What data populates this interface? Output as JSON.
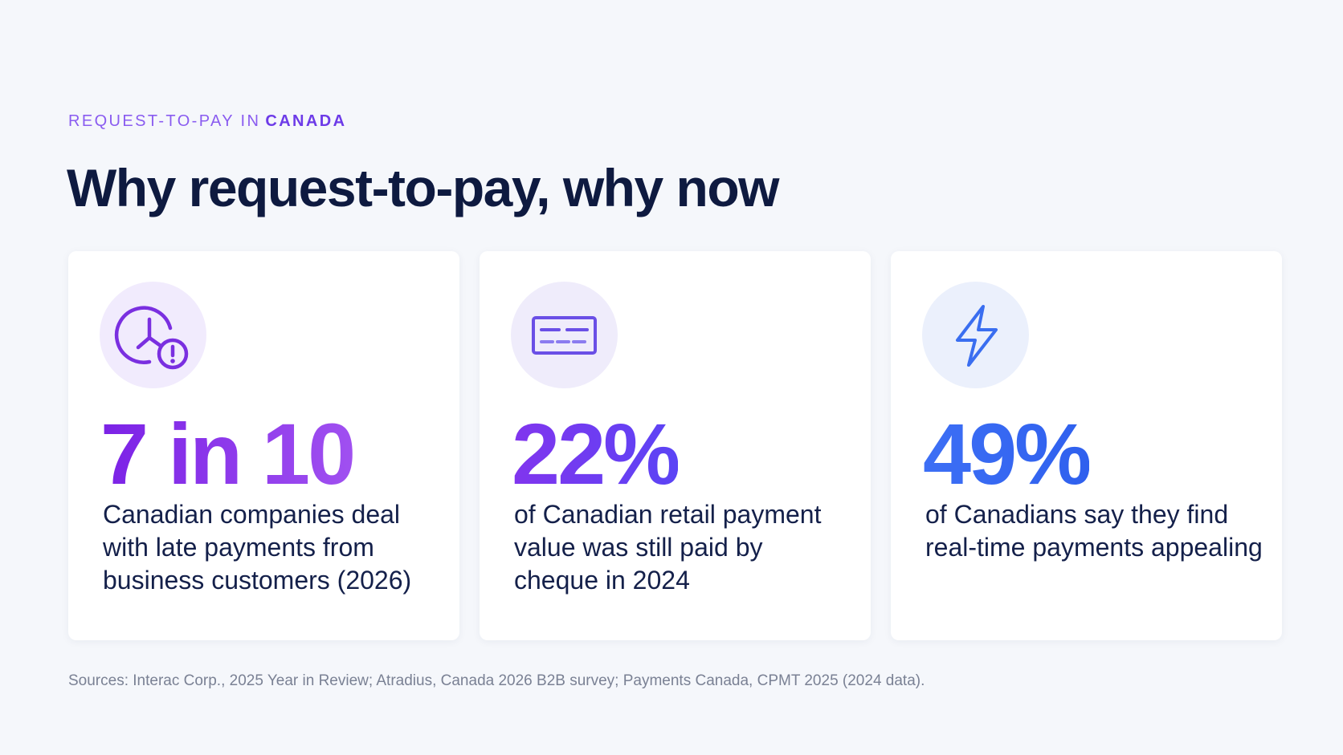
{
  "header": {
    "eyebrow": {
      "lead": "REQUEST-TO-PAY IN",
      "emphasis": "CANADA"
    },
    "title": "Why request-to-pay, why now"
  },
  "cards": [
    {
      "stat": "7 in 10",
      "description": "Canadian companies deal with late payments from business customers (2026)"
    },
    {
      "stat": "22%",
      "description": "of Canadian retail payment value was still paid by cheque in 2024"
    },
    {
      "stat": "49%",
      "description": "of Canadians say they find real-time payments appealing"
    }
  ],
  "footer": {
    "sources": "Sources: Interac Corp., 2025 Year in Review; Atradius, Canada 2026 B2B survey; Payments Canada, CPMT 2025 (2024 data)."
  }
}
